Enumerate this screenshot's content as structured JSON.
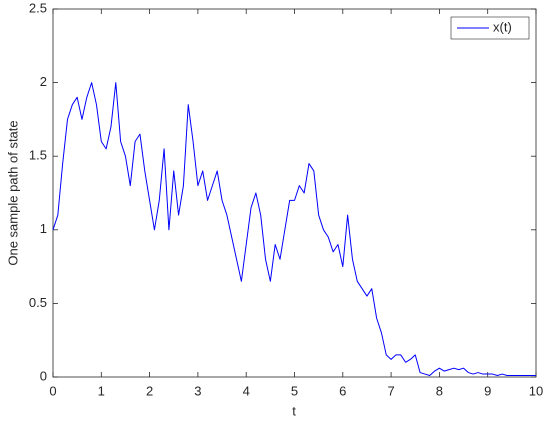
{
  "chart_data": {
    "type": "line",
    "xlabel": "t",
    "ylabel": "One sample path of state",
    "x": [
      0,
      0.1,
      0.2,
      0.3,
      0.4,
      0.5,
      0.6,
      0.7,
      0.8,
      0.9,
      1,
      1.1,
      1.2,
      1.3,
      1.4,
      1.5,
      1.6,
      1.7,
      1.8,
      1.9,
      2,
      2.1,
      2.2,
      2.3,
      2.4,
      2.5,
      2.6,
      2.7,
      2.8,
      2.9,
      3,
      3.1,
      3.2,
      3.3,
      3.4,
      3.5,
      3.6,
      3.7,
      3.8,
      3.9,
      4,
      4.1,
      4.2,
      4.3,
      4.4,
      4.5,
      4.6,
      4.7,
      4.8,
      4.9,
      5,
      5.1,
      5.2,
      5.3,
      5.4,
      5.5,
      5.6,
      5.7,
      5.8,
      5.9,
      6,
      6.1,
      6.2,
      6.3,
      6.4,
      6.5,
      6.6,
      6.7,
      6.8,
      6.9,
      7,
      7.1,
      7.2,
      7.3,
      7.4,
      7.5,
      7.6,
      7.7,
      7.8,
      7.9,
      8,
      8.1,
      8.2,
      8.3,
      8.4,
      8.5,
      8.6,
      8.7,
      8.8,
      8.9,
      9,
      9.1,
      9.2,
      9.3,
      9.4,
      9.5,
      9.6,
      9.7,
      9.8,
      9.9,
      10
    ],
    "series": [
      {
        "name": "x(t)",
        "color": "#0000ff",
        "values": [
          1.0,
          1.1,
          1.45,
          1.75,
          1.85,
          1.9,
          1.75,
          1.9,
          2.0,
          1.85,
          1.6,
          1.55,
          1.7,
          2.0,
          1.6,
          1.5,
          1.3,
          1.6,
          1.65,
          1.4,
          1.2,
          1.0,
          1.2,
          1.55,
          1.0,
          1.4,
          1.1,
          1.3,
          1.85,
          1.6,
          1.3,
          1.4,
          1.2,
          1.3,
          1.4,
          1.2,
          1.1,
          0.95,
          0.8,
          0.65,
          0.9,
          1.15,
          1.25,
          1.1,
          0.8,
          0.65,
          0.9,
          0.8,
          1.0,
          1.2,
          1.2,
          1.3,
          1.25,
          1.45,
          1.4,
          1.1,
          1.0,
          0.95,
          0.85,
          0.9,
          0.75,
          1.1,
          0.8,
          0.65,
          0.6,
          0.55,
          0.6,
          0.4,
          0.3,
          0.15,
          0.12,
          0.15,
          0.15,
          0.1,
          0.12,
          0.15,
          0.03,
          0.02,
          0.01,
          0.04,
          0.06,
          0.04,
          0.05,
          0.06,
          0.05,
          0.06,
          0.03,
          0.02,
          0.03,
          0.02,
          0.02,
          0.02,
          0.01,
          0.02,
          0.01,
          0.01,
          0.01,
          0.01,
          0.01,
          0.01,
          0.01
        ]
      }
    ],
    "xlim": [
      0,
      10
    ],
    "xticks": [
      0,
      1,
      2,
      3,
      4,
      5,
      6,
      7,
      8,
      9,
      10
    ],
    "ylim": [
      0,
      2.5
    ],
    "yticks": [
      0,
      0.5,
      1,
      1.5,
      2,
      2.5
    ],
    "legend": "upper right"
  }
}
